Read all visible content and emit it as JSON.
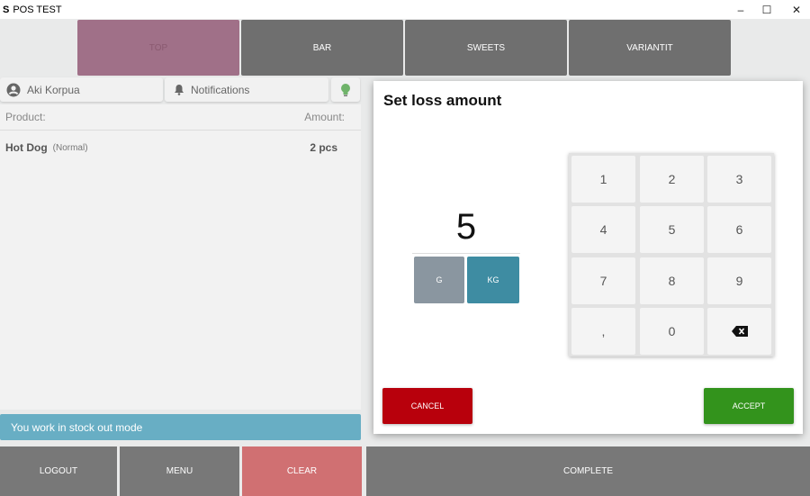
{
  "window": {
    "title": "POS TEST",
    "minimize": "–",
    "maximize": "☐",
    "close": "✕"
  },
  "categories": [
    {
      "label": "TOP",
      "color": "#a07088"
    },
    {
      "label": "BAR",
      "color": "#6f6f6f"
    },
    {
      "label": "SWEETS",
      "color": "#6f6f6f"
    },
    {
      "label": "VARIANTIT",
      "color": "#6f6f6f"
    }
  ],
  "user": {
    "name": "Aki Korpua"
  },
  "notifications": {
    "label": "Notifications"
  },
  "list": {
    "product_header": "Product:",
    "amount_header": "Amount:",
    "rows": [
      {
        "name": "Hot Dog",
        "variant": "(Normal)",
        "amount": "2 pcs"
      }
    ]
  },
  "status": {
    "text": "You work in stock out mode",
    "color": "#68aec4"
  },
  "bottom": {
    "logout": "LOGOUT",
    "menu": "MENU",
    "clear": "CLEAR",
    "complete": "COMPLETE"
  },
  "dialog": {
    "title": "Set loss amount",
    "value": "5",
    "units": [
      {
        "label": "G",
        "selected": false
      },
      {
        "label": "KG",
        "selected": true
      }
    ],
    "keys": [
      "1",
      "2",
      "3",
      "4",
      "5",
      "6",
      "7",
      "8",
      "9",
      ",",
      "0",
      "backspace"
    ],
    "cancel": "CANCEL",
    "accept": "ACCEPT",
    "cancel_color": "#b8000c",
    "accept_color": "#33931c"
  }
}
